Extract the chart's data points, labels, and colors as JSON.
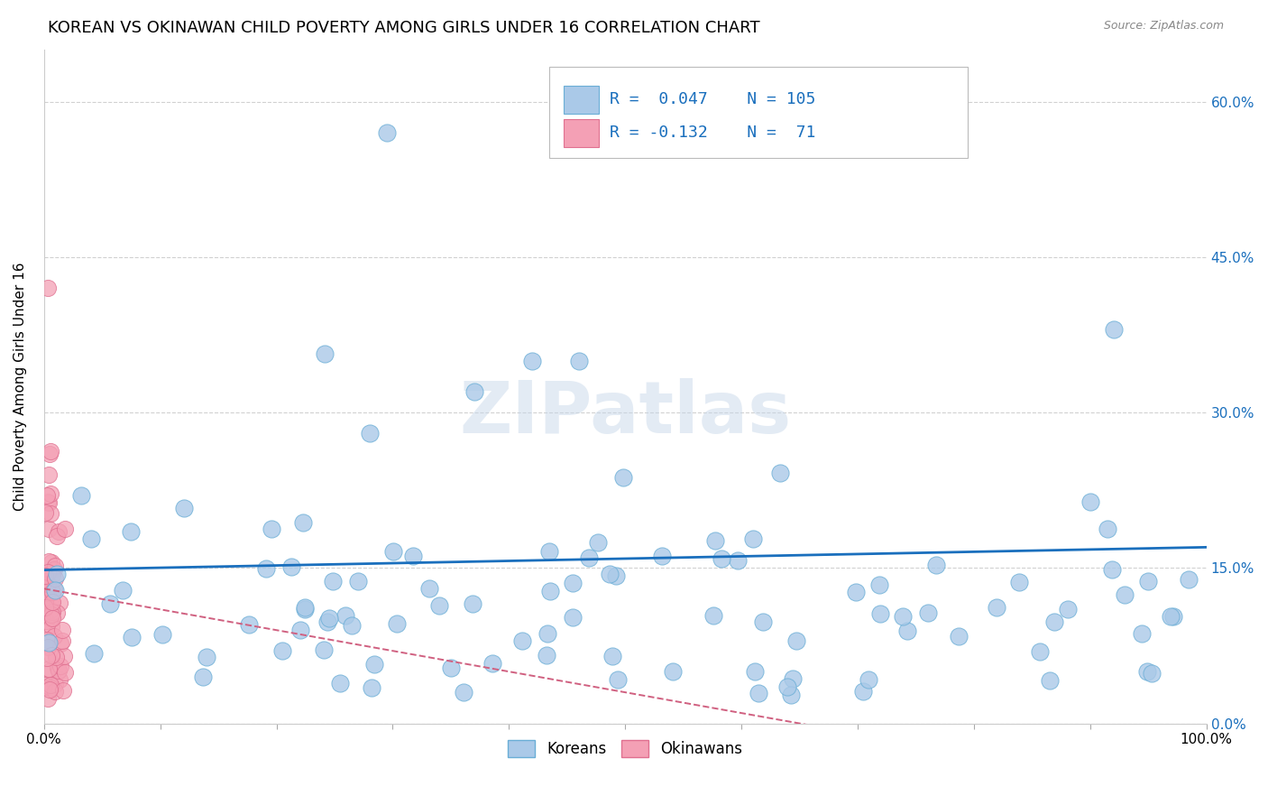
{
  "title": "KOREAN VS OKINAWAN CHILD POVERTY AMONG GIRLS UNDER 16 CORRELATION CHART",
  "source": "Source: ZipAtlas.com",
  "ylabel": "Child Poverty Among Girls Under 16",
  "watermark": "ZIPatlas",
  "korean_R": 0.047,
  "korean_N": 105,
  "okinawan_R": -0.132,
  "okinawan_N": 71,
  "korean_color": "#aac9e8",
  "korean_edge_color": "#6aaed6",
  "okinawan_color": "#f4a0b5",
  "okinawan_edge_color": "#e07090",
  "trend_blue": "#1a6fbd",
  "trend_pink": "#d06080",
  "xlim": [
    0.0,
    1.0
  ],
  "ylim": [
    0.0,
    0.65
  ],
  "yticks": [
    0.0,
    0.15,
    0.3,
    0.45,
    0.6
  ],
  "ytick_labels": [
    "0.0%",
    "15.0%",
    "30.0%",
    "45.0%",
    "60.0%"
  ],
  "background_color": "#ffffff",
  "grid_color": "#cccccc",
  "title_fontsize": 13,
  "axis_label_fontsize": 11,
  "tick_fontsize": 11
}
